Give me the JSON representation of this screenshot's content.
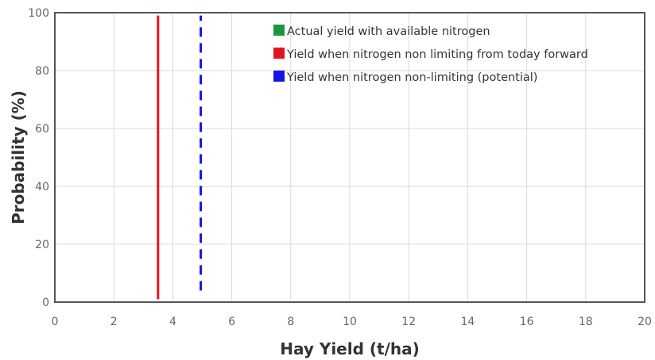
{
  "chart_data": {
    "type": "line",
    "xlabel": "Hay Yield (t/ha)",
    "ylabel": "Probability (%)",
    "xlim": [
      0,
      20
    ],
    "ylim": [
      0,
      100
    ],
    "x_ticks": [
      "0",
      "2",
      "4",
      "6",
      "8",
      "10",
      "12",
      "14",
      "16",
      "18",
      "20"
    ],
    "y_ticks": [
      "0",
      "20",
      "40",
      "60",
      "80",
      "100"
    ],
    "grid": true,
    "legend_position": "top-right",
    "series": [
      {
        "name": "Actual yield with available nitrogen",
        "color": "#1a9641",
        "style": "solid",
        "points": []
      },
      {
        "name": "Yield when nitrogen non limiting from today forward",
        "color": "#e0161e",
        "style": "solid",
        "points": [
          {
            "x": 3.5,
            "y": 1
          },
          {
            "x": 3.5,
            "y": 99
          }
        ]
      },
      {
        "name": "Yield when nitrogen non-limiting (potential)",
        "color": "#1414e6",
        "style": "dashed",
        "points": [
          {
            "x": 4.95,
            "y": 4
          },
          {
            "x": 4.95,
            "y": 99
          }
        ]
      }
    ]
  }
}
